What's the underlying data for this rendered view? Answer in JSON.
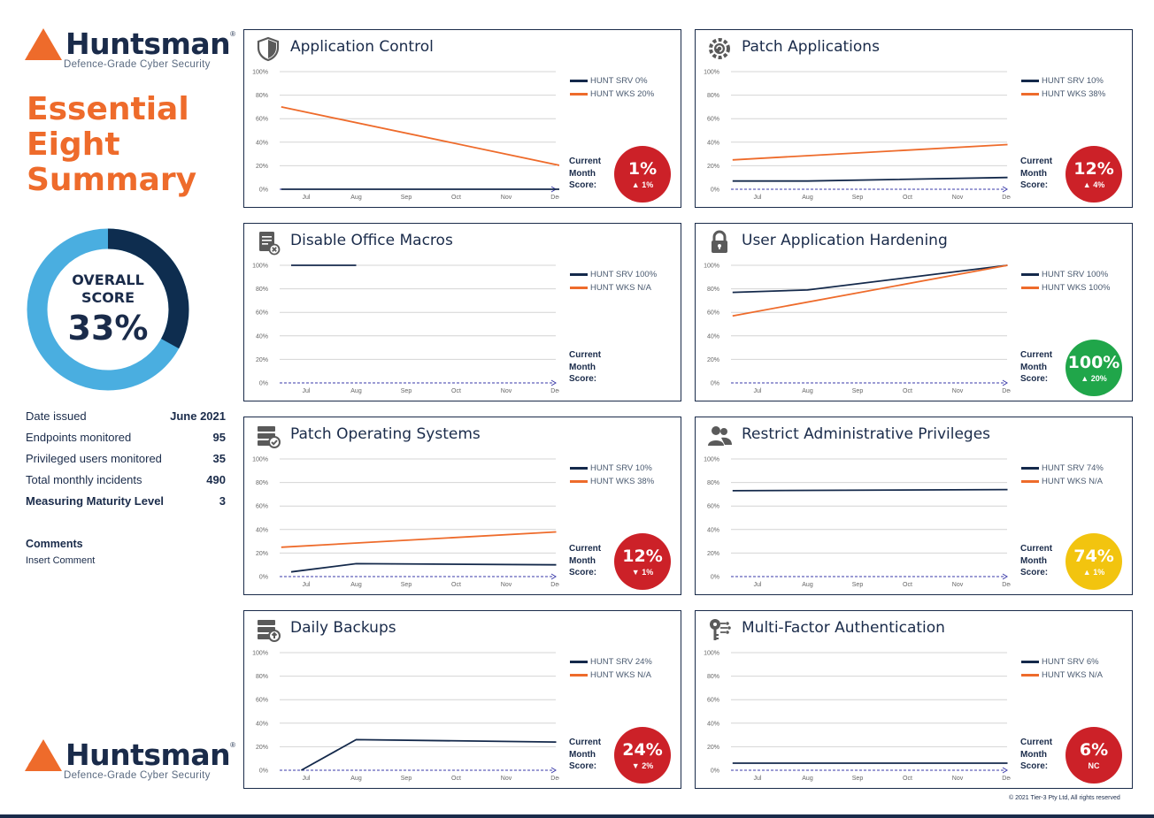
{
  "brand": {
    "name": "Huntsman",
    "reg": "®",
    "tagline": "Defence-Grade Cyber Security"
  },
  "title": "Essential Eight Summary",
  "overall": {
    "label_line1": "OVERALL",
    "label_line2": "SCORE",
    "value": "33%",
    "fraction": 0.33,
    "color_score": "#0e2d4f",
    "color_rest": "#4aaee0"
  },
  "stats": [
    {
      "label": "Date issued",
      "value": "June 2021"
    },
    {
      "label": "Endpoints monitored",
      "value": "95"
    },
    {
      "label": "Privileged users monitored",
      "value": "35"
    },
    {
      "label": "Total monthly incidents",
      "value": "490"
    },
    {
      "label": "Measuring Maturity Level",
      "value": "3"
    }
  ],
  "comments": {
    "heading": "Comments",
    "body": "Insert Comment"
  },
  "labels": {
    "current": "Current",
    "month": "Month",
    "score": "Score:"
  },
  "colors": {
    "navy": "#14294b",
    "orange": "#ee6b2b",
    "red": "#cc2128",
    "green": "#20a64a",
    "yellow": "#f2c40f"
  },
  "panels": [
    {
      "title": "Application Control",
      "icon": "shield-icon",
      "legend": [
        "HUNT SRV 0%",
        "HUNT WKS 20%"
      ],
      "badge": {
        "value": "1%",
        "delta": "▲ 1%",
        "color": "#cc2128"
      },
      "chart_data": {
        "type": "line",
        "categories": [
          "Jul",
          "Aug",
          "Sep",
          "Oct",
          "Nov",
          "Dec"
        ],
        "ylim": [
          0,
          100
        ],
        "yticks": [
          "0%",
          "20%",
          "40%",
          "60%",
          "80%",
          "100%"
        ],
        "series": [
          {
            "name": "HUNT SRV 0%",
            "color": "#14294b",
            "points": [
              [
                -0.5,
                0
              ],
              [
                5.1,
                0
              ]
            ]
          },
          {
            "name": "HUNT WKS 20%",
            "color": "#ee6b2b",
            "points": [
              [
                -0.5,
                70
              ],
              [
                5.1,
                20
              ]
            ]
          }
        ]
      }
    },
    {
      "title": "Patch Applications",
      "icon": "gear-refresh-icon",
      "legend": [
        "HUNT SRV 10%",
        "HUNT WKS 38%"
      ],
      "badge": {
        "value": "12%",
        "delta": "▲ 4%",
        "color": "#cc2128"
      },
      "chart_data": {
        "type": "line",
        "categories": [
          "Jul",
          "Aug",
          "Sep",
          "Oct",
          "Nov",
          "Dec"
        ],
        "ylim": [
          0,
          100
        ],
        "yticks": [
          "0%",
          "20%",
          "40%",
          "60%",
          "80%",
          "100%"
        ],
        "series": [
          {
            "name": "HUNT SRV 10%",
            "color": "#14294b",
            "points": [
              [
                -0.5,
                7
              ],
              [
                1,
                7
              ],
              [
                5,
                10
              ]
            ]
          },
          {
            "name": "HUNT WKS 38%",
            "color": "#ee6b2b",
            "points": [
              [
                -0.5,
                25
              ],
              [
                5,
                38
              ]
            ]
          }
        ]
      }
    },
    {
      "title": "Disable Office Macros",
      "icon": "document-x-icon",
      "legend": [
        "HUNT SRV 100%",
        "HUNT WKS N/A"
      ],
      "badge": null,
      "chart_data": {
        "type": "line",
        "categories": [
          "Jul",
          "Aug",
          "Sep",
          "Oct",
          "Nov",
          "Dec"
        ],
        "ylim": [
          0,
          100
        ],
        "yticks": [
          "0%",
          "20%",
          "40%",
          "60%",
          "80%",
          "100%"
        ],
        "series": [
          {
            "name": "HUNT SRV 100%",
            "color": "#14294b",
            "points": [
              [
                -0.3,
                100
              ],
              [
                1,
                100
              ]
            ]
          },
          {
            "name": "HUNT WKS N/A",
            "color": "#ee6b2b",
            "points": []
          }
        ]
      }
    },
    {
      "title": "User Application Hardening",
      "icon": "padlock-icon",
      "legend": [
        "HUNT SRV 100%",
        "HUNT WKS 100%"
      ],
      "badge": {
        "value": "100%",
        "delta": "▲ 20%",
        "color": "#20a64a"
      },
      "chart_data": {
        "type": "line",
        "categories": [
          "Jul",
          "Aug",
          "Sep",
          "Oct",
          "Nov",
          "Dec"
        ],
        "ylim": [
          0,
          100
        ],
        "yticks": [
          "0%",
          "20%",
          "40%",
          "60%",
          "80%",
          "100%"
        ],
        "series": [
          {
            "name": "HUNT SRV 100%",
            "color": "#14294b",
            "points": [
              [
                -0.5,
                77
              ],
              [
                1,
                79
              ],
              [
                5,
                100
              ]
            ]
          },
          {
            "name": "HUNT WKS 100%",
            "color": "#ee6b2b",
            "points": [
              [
                -0.5,
                57
              ],
              [
                5,
                100
              ]
            ]
          }
        ]
      }
    },
    {
      "title": "Patch Operating Systems",
      "icon": "server-check-icon",
      "legend": [
        "HUNT SRV 10%",
        "HUNT WKS 38%"
      ],
      "badge": {
        "value": "12%",
        "delta": "▼ 1%",
        "color": "#cc2128"
      },
      "chart_data": {
        "type": "line",
        "categories": [
          "Jul",
          "Aug",
          "Sep",
          "Oct",
          "Nov",
          "Dec"
        ],
        "ylim": [
          0,
          100
        ],
        "yticks": [
          "0%",
          "20%",
          "40%",
          "60%",
          "80%",
          "100%"
        ],
        "series": [
          {
            "name": "HUNT SRV 10%",
            "color": "#14294b",
            "points": [
              [
                -0.3,
                4
              ],
              [
                1,
                11
              ],
              [
                5,
                10
              ]
            ]
          },
          {
            "name": "HUNT WKS 38%",
            "color": "#ee6b2b",
            "points": [
              [
                -0.5,
                25
              ],
              [
                5,
                38
              ]
            ]
          }
        ]
      }
    },
    {
      "title": "Restrict Administrative Privileges",
      "icon": "users-icon",
      "legend": [
        "HUNT SRV 74%",
        "HUNT WKS N/A"
      ],
      "badge": {
        "value": "74%",
        "delta": "▲ 1%",
        "color": "#f2c40f"
      },
      "chart_data": {
        "type": "line",
        "categories": [
          "Jul",
          "Aug",
          "Sep",
          "Oct",
          "Nov",
          "Dec"
        ],
        "ylim": [
          0,
          100
        ],
        "yticks": [
          "0%",
          "20%",
          "40%",
          "60%",
          "80%",
          "100%"
        ],
        "series": [
          {
            "name": "HUNT SRV 74%",
            "color": "#14294b",
            "points": [
              [
                -0.5,
                73
              ],
              [
                5,
                74
              ]
            ]
          },
          {
            "name": "HUNT WKS N/A",
            "color": "#ee6b2b",
            "points": []
          }
        ]
      }
    },
    {
      "title": "Daily Backups",
      "icon": "server-backup-icon",
      "legend": [
        "HUNT SRV 24%",
        "HUNT WKS N/A"
      ],
      "badge": {
        "value": "24%",
        "delta": "▼ 2%",
        "color": "#cc2128"
      },
      "chart_data": {
        "type": "line",
        "categories": [
          "Jul",
          "Aug",
          "Sep",
          "Oct",
          "Nov",
          "Dec"
        ],
        "ylim": [
          0,
          100
        ],
        "yticks": [
          "0%",
          "20%",
          "40%",
          "60%",
          "80%",
          "100%"
        ],
        "series": [
          {
            "name": "HUNT SRV 24%",
            "color": "#14294b",
            "points": [
              [
                -0.1,
                0
              ],
              [
                1,
                26
              ],
              [
                5,
                24
              ]
            ]
          },
          {
            "name": "HUNT WKS N/A",
            "color": "#ee6b2b",
            "points": []
          }
        ]
      }
    },
    {
      "title": "Multi-Factor Authentication",
      "icon": "key-circuit-icon",
      "legend": [
        "HUNT SRV 6%",
        "HUNT WKS N/A"
      ],
      "badge": {
        "value": "6%",
        "delta": "NC",
        "color": "#cc2128"
      },
      "chart_data": {
        "type": "line",
        "categories": [
          "Jul",
          "Aug",
          "Sep",
          "Oct",
          "Nov",
          "Dec"
        ],
        "ylim": [
          0,
          100
        ],
        "yticks": [
          "0%",
          "20%",
          "40%",
          "60%",
          "80%",
          "100%"
        ],
        "series": [
          {
            "name": "HUNT SRV 6%",
            "color": "#14294b",
            "points": [
              [
                -0.5,
                6
              ],
              [
                5,
                6
              ]
            ]
          },
          {
            "name": "HUNT WKS N/A",
            "color": "#ee6b2b",
            "points": []
          }
        ]
      }
    }
  ],
  "footer": "© 2021 Tier-3 Pty Ltd, All rights reserved"
}
